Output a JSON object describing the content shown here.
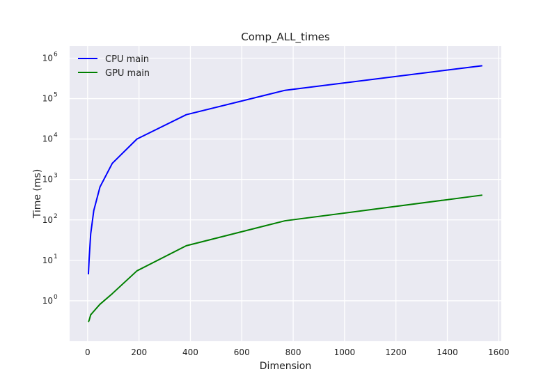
{
  "chart_data": {
    "type": "line",
    "title": "Comp_ALL_times",
    "xlabel": "Dimension",
    "ylabel": "Time (ms)",
    "xlim": [
      -70,
      1610
    ],
    "ylim": [
      0.1,
      2000000
    ],
    "y_scale": "log",
    "grid": true,
    "legend_position": "top-left",
    "background_color": "#eaeaf2",
    "grid_color": "#ffffff",
    "x_ticks": [
      {
        "value": 0,
        "label": "0"
      },
      {
        "value": 200,
        "label": "200"
      },
      {
        "value": 400,
        "label": "400"
      },
      {
        "value": 600,
        "label": "600"
      },
      {
        "value": 800,
        "label": "800"
      },
      {
        "value": 1000,
        "label": "1000"
      },
      {
        "value": 1200,
        "label": "1200"
      },
      {
        "value": 1400,
        "label": "1400"
      },
      {
        "value": 1600,
        "label": "1600"
      }
    ],
    "y_ticks": [
      {
        "value": 1,
        "base": "10",
        "exp": "0"
      },
      {
        "value": 10,
        "base": "10",
        "exp": "1"
      },
      {
        "value": 100,
        "base": "10",
        "exp": "2"
      },
      {
        "value": 1000,
        "base": "10",
        "exp": "3"
      },
      {
        "value": 10000,
        "base": "10",
        "exp": "4"
      },
      {
        "value": 100000,
        "base": "10",
        "exp": "5"
      },
      {
        "value": 1000000,
        "base": "10",
        "exp": "6"
      }
    ],
    "x": [
      3,
      6,
      12,
      24,
      48,
      96,
      192,
      384,
      768,
      1536
    ],
    "series": [
      {
        "name": "CPU main",
        "color": "#0000ff",
        "values": [
          4.5,
          11,
          45,
          170,
          650,
          2500,
          10000,
          40000,
          160000,
          650000
        ]
      },
      {
        "name": "GPU main",
        "color": "#008000",
        "values": [
          0.3,
          0.33,
          0.45,
          0.55,
          0.82,
          1.5,
          5.5,
          23,
          95,
          410
        ]
      }
    ]
  }
}
